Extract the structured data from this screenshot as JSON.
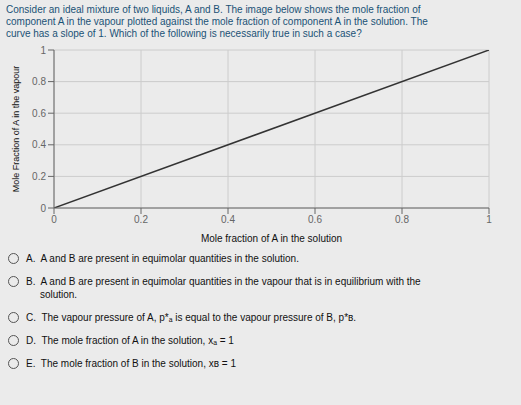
{
  "chart_data": {
    "type": "line",
    "title": [
      "Consider an ideal mixture of two liquids, A and B. The image below shows the mole fraction of",
      "component A in the vapour plotted against the mole fraction of component A in the solution. The",
      "curve has a slope of 1. Which of the following is necessarily true in such a case?"
    ],
    "xlabel": "Mole fraction of A in the solution",
    "ylabel": "Mole Fraction of A in the vapour",
    "x": [
      0,
      1
    ],
    "values": [
      0,
      1
    ],
    "color": "#333333",
    "xlim": [
      0,
      1
    ],
    "ylim": [
      0,
      1
    ],
    "xticks": [
      0,
      0.2,
      0.4,
      0.6,
      0.8,
      1
    ],
    "yticks": [
      0,
      0.2,
      0.4,
      0.6,
      0.8,
      1
    ],
    "grid": true,
    "annotations": [
      "A.  A and B are present in equimolar quantities in the solution.",
      "B.  A and B are present in equimolar quantities in the vapour that is in equilibrium with the\n     solution.",
      "C.  The vapour pressure of A, p*ₐ is equal to the vapour pressure of B, p*ʙ.",
      "D.  The mole fraction of A in the solution, xₐ = 1",
      "E.  The mole fraction of B in the solution, xʙ = 1"
    ]
  }
}
